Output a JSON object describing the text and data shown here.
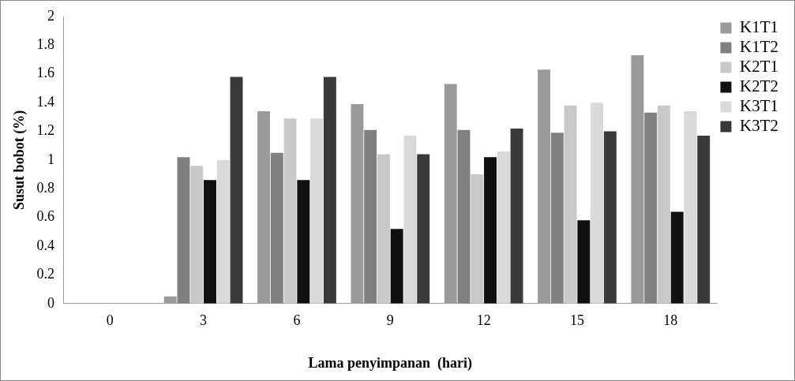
{
  "chart_data": {
    "type": "bar",
    "xlabel": "Lama penyimpanan  (hari)",
    "ylabel": "Susut bobot (%)",
    "categories": [
      "0",
      "3",
      "6",
      "9",
      "12",
      "15",
      "18"
    ],
    "series": [
      {
        "name": "K1T1",
        "color": "#9a9a9a",
        "values": [
          0,
          0.05,
          1.34,
          1.39,
          1.53,
          1.63,
          1.73
        ]
      },
      {
        "name": "K1T2",
        "color": "#808080",
        "values": [
          0,
          1.02,
          1.05,
          1.21,
          1.21,
          1.19,
          1.33
        ]
      },
      {
        "name": "K2T1",
        "color": "#c8c8c8",
        "values": [
          0,
          0.96,
          1.29,
          1.04,
          0.9,
          1.38,
          1.38
        ]
      },
      {
        "name": "K2T2",
        "color": "#111111",
        "values": [
          0,
          0.86,
          0.86,
          0.52,
          1.02,
          0.58,
          0.64
        ]
      },
      {
        "name": "K3T1",
        "color": "#d9d9d9",
        "values": [
          0,
          1.0,
          1.29,
          1.17,
          1.06,
          1.4,
          1.34
        ]
      },
      {
        "name": "K3T2",
        "color": "#3a3a3a",
        "values": [
          0,
          1.58,
          1.58,
          1.04,
          1.22,
          1.2,
          1.17
        ]
      }
    ],
    "ylim": [
      0,
      2
    ],
    "yticks": [
      0,
      0.2,
      0.4,
      0.6,
      0.8,
      1,
      1.2,
      1.4,
      1.6,
      1.8,
      2
    ],
    "legend": "top right",
    "grid": false
  }
}
